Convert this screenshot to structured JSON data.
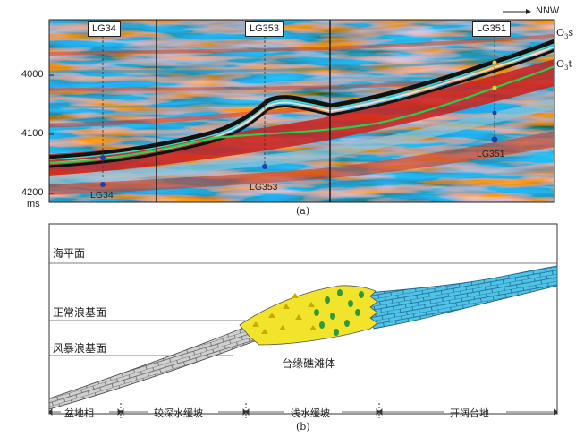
{
  "part_a": {
    "caption": "(a)",
    "direction": "NNW",
    "wells_top": [
      "LG34",
      "LG353",
      "LG351"
    ],
    "wells_bottom": [
      "LG34",
      "LG353",
      "LG351"
    ],
    "horizons": [
      {
        "name": "O",
        "sub": "3",
        "suffix": "s"
      },
      {
        "name": "O",
        "sub": "3",
        "suffix": "t"
      }
    ],
    "y_ticks": [
      "4000",
      "4100",
      "4200"
    ],
    "y_unit": "ms"
  },
  "part_b": {
    "caption": "(b)",
    "levels": [
      "海平面",
      "正常浪基面",
      "风暴浪基面"
    ],
    "body_label": "台缘礁滩体",
    "facies": [
      "盆地相",
      "较深水缓坡",
      "浅水缓坡",
      "开阔台地"
    ]
  }
}
